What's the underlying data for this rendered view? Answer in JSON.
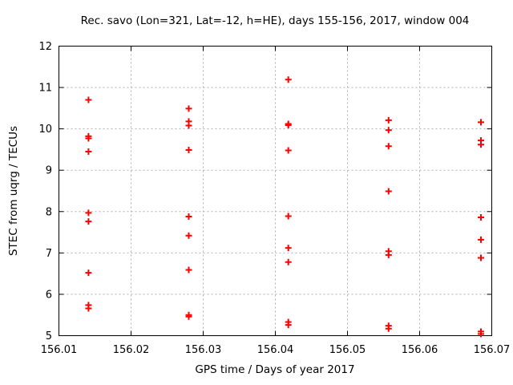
{
  "window": {
    "background": "#ffffff"
  },
  "colors": {
    "marker": "#ff0000",
    "grid": "#b0b0b0",
    "axis": "#000000",
    "text": "#000000"
  },
  "chart_data": {
    "type": "scatter",
    "title": "Rec. savo (Lon=321, Lat=-12, h=HE), days 155-156, 2017, window 004",
    "xlabel": "GPS time / Days of year 2017",
    "ylabel": "STEC from uqrg / TECUs",
    "xlim": [
      156.01,
      156.07
    ],
    "ylim": [
      5,
      12
    ],
    "xticks": [
      156.01,
      156.02,
      156.03,
      156.04,
      156.05,
      156.06,
      156.07
    ],
    "xtick_labels": [
      "156.01",
      "156.02",
      "156.03",
      "156.04",
      "156.05",
      "156.06",
      "156.07"
    ],
    "yticks": [
      5,
      6,
      7,
      8,
      9,
      10,
      11,
      12
    ],
    "ytick_labels": [
      "5",
      "6",
      "7",
      "8",
      "9",
      "10",
      "11",
      "12"
    ],
    "grid": true,
    "legend_position": "none",
    "marker_style": "plus",
    "series": [
      {
        "name": "STEC",
        "points": [
          [
            156.0141,
            10.7
          ],
          [
            156.0141,
            9.82
          ],
          [
            156.0141,
            9.77
          ],
          [
            156.0141,
            9.45
          ],
          [
            156.0141,
            7.97
          ],
          [
            156.0141,
            7.76
          ],
          [
            156.0141,
            6.52
          ],
          [
            156.0141,
            5.74
          ],
          [
            156.0141,
            5.66
          ],
          [
            156.028,
            10.49
          ],
          [
            156.028,
            10.18
          ],
          [
            156.028,
            10.08
          ],
          [
            156.028,
            9.49
          ],
          [
            156.028,
            7.88
          ],
          [
            156.028,
            7.42
          ],
          [
            156.028,
            6.59
          ],
          [
            156.028,
            5.5
          ],
          [
            156.028,
            5.46
          ],
          [
            156.0418,
            11.19
          ],
          [
            156.0418,
            10.12
          ],
          [
            156.0418,
            10.09
          ],
          [
            156.0418,
            9.48
          ],
          [
            156.0418,
            7.89
          ],
          [
            156.0418,
            7.12
          ],
          [
            156.0418,
            6.78
          ],
          [
            156.0418,
            5.33
          ],
          [
            156.0418,
            5.26
          ],
          [
            156.0557,
            10.21
          ],
          [
            156.0557,
            9.97
          ],
          [
            156.0557,
            9.58
          ],
          [
            156.0557,
            8.49
          ],
          [
            156.0557,
            7.04
          ],
          [
            156.0557,
            6.95
          ],
          [
            156.0557,
            5.24
          ],
          [
            156.0557,
            5.17
          ],
          [
            156.0685,
            10.16
          ],
          [
            156.0685,
            9.72
          ],
          [
            156.0685,
            9.62
          ],
          [
            156.0685,
            7.86
          ],
          [
            156.0685,
            7.32
          ],
          [
            156.0685,
            6.88
          ],
          [
            156.0685,
            5.1
          ],
          [
            156.0685,
            5.04
          ]
        ]
      }
    ]
  }
}
